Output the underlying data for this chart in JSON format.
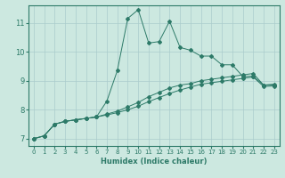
{
  "title": "",
  "xlabel": "Humidex (Indice chaleur)",
  "ylabel": "",
  "bg_color": "#cce8e0",
  "line_color": "#2d7a68",
  "grid_color": "#aacccc",
  "xlim": [
    -0.5,
    23.5
  ],
  "ylim": [
    6.75,
    11.6
  ],
  "xticks": [
    0,
    1,
    2,
    3,
    4,
    5,
    6,
    7,
    8,
    9,
    10,
    11,
    12,
    13,
    14,
    15,
    16,
    17,
    18,
    19,
    20,
    21,
    22,
    23
  ],
  "yticks": [
    7,
    8,
    9,
    10,
    11
  ],
  "line1_x": [
    0,
    1,
    2,
    3,
    4,
    5,
    6,
    7,
    8,
    9,
    10,
    11,
    12,
    13,
    14,
    15,
    16,
    17,
    18,
    19,
    20,
    21,
    22,
    23
  ],
  "line1_y": [
    7.0,
    7.1,
    7.5,
    7.6,
    7.65,
    7.7,
    7.75,
    8.3,
    9.35,
    11.15,
    11.45,
    10.3,
    10.35,
    11.05,
    10.15,
    10.05,
    9.85,
    9.85,
    9.55,
    9.55,
    9.15,
    9.15,
    8.85,
    8.85
  ],
  "line2_x": [
    0,
    1,
    2,
    3,
    4,
    5,
    6,
    7,
    8,
    9,
    10,
    11,
    12,
    13,
    14,
    15,
    16,
    17,
    18,
    19,
    20,
    21,
    22,
    23
  ],
  "line2_y": [
    7.0,
    7.1,
    7.5,
    7.6,
    7.65,
    7.7,
    7.75,
    7.85,
    7.95,
    8.1,
    8.25,
    8.45,
    8.6,
    8.75,
    8.85,
    8.9,
    9.0,
    9.05,
    9.1,
    9.15,
    9.2,
    9.25,
    8.85,
    8.88
  ],
  "line3_x": [
    0,
    1,
    2,
    3,
    4,
    5,
    6,
    7,
    8,
    9,
    10,
    11,
    12,
    13,
    14,
    15,
    16,
    17,
    18,
    19,
    20,
    21,
    22,
    23
  ],
  "line3_y": [
    7.0,
    7.1,
    7.5,
    7.6,
    7.65,
    7.7,
    7.75,
    7.82,
    7.9,
    8.0,
    8.12,
    8.28,
    8.42,
    8.56,
    8.68,
    8.78,
    8.88,
    8.93,
    8.98,
    9.03,
    9.08,
    9.13,
    8.8,
    8.82
  ]
}
